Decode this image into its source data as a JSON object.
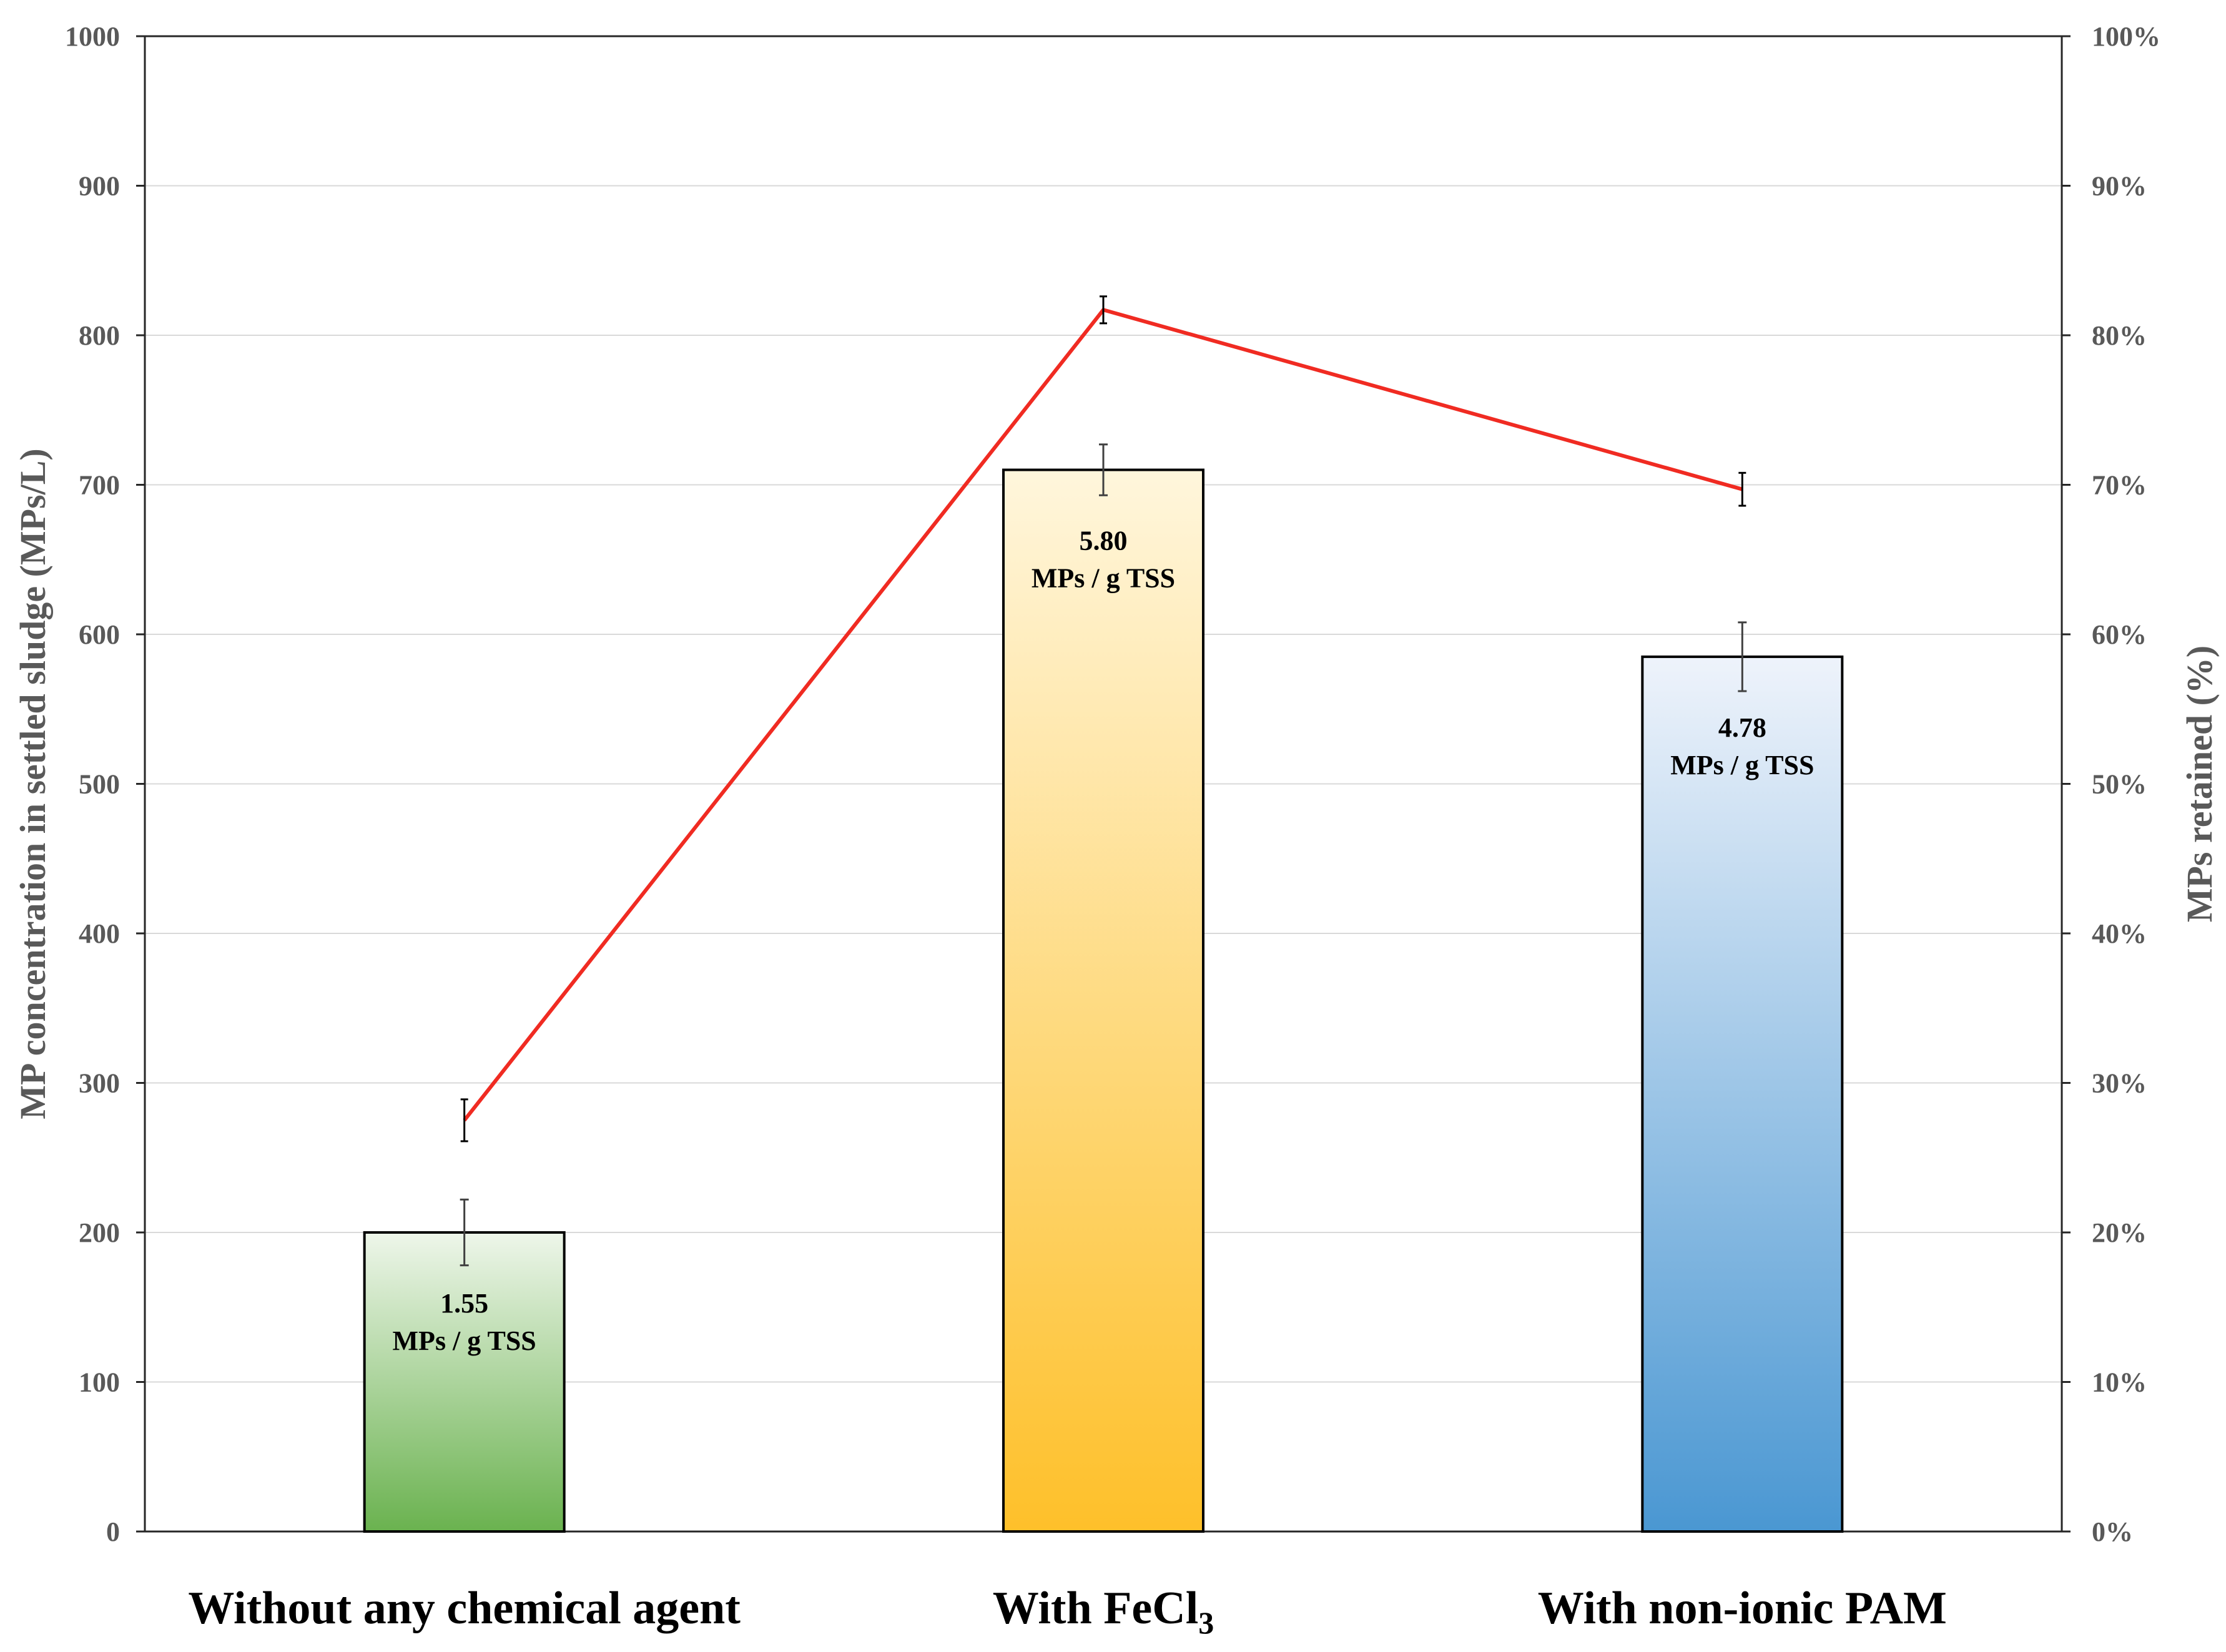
{
  "chart_data": {
    "type": "bar",
    "categories": [
      {
        "main": "Without any chemical agent",
        "sub": ""
      },
      {
        "main": "With FeCl",
        "sub": "3"
      },
      {
        "main": "With non-ionic PAM",
        "sub": ""
      }
    ],
    "left_axis": {
      "label": "MP concentration in settled sludge (MPs/L)",
      "ylim": [
        0,
        1000
      ],
      "ticks": [
        "0",
        "100",
        "200",
        "300",
        "400",
        "500",
        "600",
        "700",
        "800",
        "900",
        "1000"
      ]
    },
    "right_axis": {
      "label": "MPs retained (%)",
      "ylim": [
        0,
        100
      ],
      "ticks": [
        "0%",
        "10%",
        "20%",
        "30%",
        "40%",
        "50%",
        "60%",
        "70%",
        "80%",
        "90%",
        "100%"
      ]
    },
    "bars": {
      "values": [
        200,
        710,
        585
      ],
      "error": [
        22,
        17,
        23
      ],
      "labels": [
        {
          "value": "1.55",
          "unit": "MPs / g TSS"
        },
        {
          "value": "5.80",
          "unit": "MPs / g TSS"
        },
        {
          "value": "4.78",
          "unit": "MPs / g TSS"
        }
      ],
      "colors": [
        {
          "top": "#eef6ea",
          "bottom": "#6ab24f"
        },
        {
          "top": "#fff6dc",
          "bottom": "#fec02a"
        },
        {
          "top": "#eef3fb",
          "bottom": "#4a97d2"
        }
      ]
    },
    "line": {
      "values": [
        27.5,
        81.7,
        69.7
      ],
      "error": [
        1.4,
        0.9,
        1.1
      ],
      "color": "#f02b22"
    },
    "grid": true,
    "legend": "none"
  }
}
